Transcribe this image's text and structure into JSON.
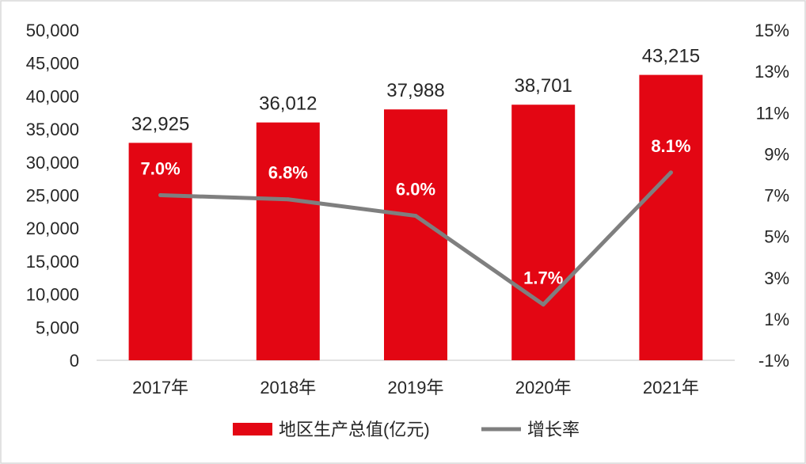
{
  "chart_data": {
    "type": "bar+line",
    "categories": [
      "2017年",
      "2018年",
      "2019年",
      "2020年",
      "2021年"
    ],
    "series": [
      {
        "name": "地区生产总值(亿元)",
        "type": "bar",
        "axis": "left",
        "color": "#e30613",
        "values": [
          32925,
          36012,
          37988,
          38701,
          43215
        ],
        "labels": [
          "32,925",
          "36,012",
          "37,988",
          "38,701",
          "43,215"
        ]
      },
      {
        "name": "增长率",
        "type": "line",
        "axis": "right",
        "color": "#7f7f7f",
        "values": [
          7.0,
          6.8,
          6.0,
          1.7,
          8.1
        ],
        "labels": [
          "7.0%",
          "6.8%",
          "6.0%",
          "1.7%",
          "8.1%"
        ]
      }
    ],
    "y_left": {
      "min": 0,
      "max": 50000,
      "step": 5000,
      "tick_labels": [
        "0",
        "5,000",
        "10,000",
        "15,000",
        "20,000",
        "25,000",
        "30,000",
        "35,000",
        "40,000",
        "45,000",
        "50,000"
      ]
    },
    "y_right": {
      "min": -1,
      "max": 15,
      "step": 2,
      "tick_labels": [
        "-1%",
        "1%",
        "3%",
        "5%",
        "7%",
        "9%",
        "11%",
        "13%",
        "15%"
      ]
    },
    "legend_position": "bottom-center",
    "grid": false
  }
}
